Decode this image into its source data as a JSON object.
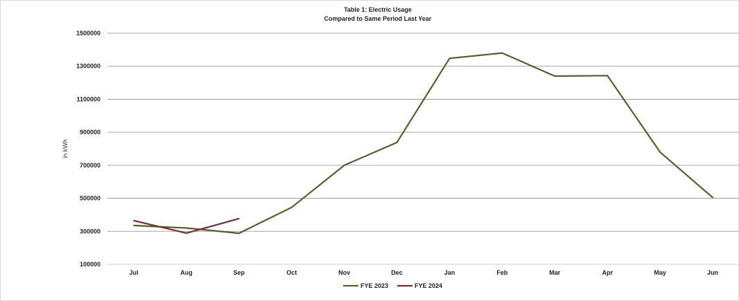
{
  "chart_data": {
    "type": "line",
    "title": "Table 1: Electric Usage",
    "subtitle": "Compared to Same Period Last Year",
    "xlabel": "",
    "ylabel": "in kWh",
    "categories": [
      "Jul",
      "Aug",
      "Sep",
      "Oct",
      "Nov",
      "Dec",
      "Jan",
      "Feb",
      "Mar",
      "Apr",
      "May",
      "Jun"
    ],
    "y_ticks": [
      "1500000",
      "1300000",
      "1100000",
      "900000",
      "700000",
      "500000",
      "300000",
      "100000"
    ],
    "ylim": [
      100000,
      1500000
    ],
    "grid": true,
    "legend_position": "bottom",
    "series": [
      {
        "name": "FYE 2023",
        "color": "#4f6228",
        "values": [
          335000,
          320000,
          288000,
          445000,
          700000,
          838000,
          1348000,
          1380000,
          1240000,
          1243000,
          780000,
          505000
        ]
      },
      {
        "name": "FYE 2024",
        "color": "#7b2c2c",
        "values": [
          365000,
          289000,
          377000,
          null,
          null,
          null,
          null,
          null,
          null,
          null,
          null,
          null
        ]
      }
    ]
  }
}
